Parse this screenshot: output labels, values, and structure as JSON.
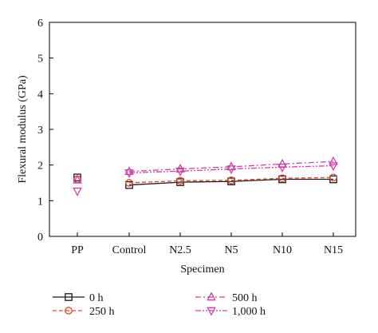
{
  "chart_data": {
    "type": "line",
    "xlabel": "Specimen",
    "ylabel": "Flexural modulus (GPa)",
    "categories": [
      "PP",
      "Control",
      "N2.5",
      "N5",
      "N10",
      "N15"
    ],
    "ylim": [
      0,
      6
    ],
    "yticks": [
      "0",
      "1",
      "2",
      "3",
      "4",
      "5",
      "6"
    ],
    "grid": false,
    "legend_position": "bottom",
    "series": [
      {
        "name": "0 h",
        "marker": "square",
        "color": "#1a1a1a",
        "dash": "solid",
        "values": [
          1.65,
          1.44,
          1.52,
          1.54,
          1.6,
          1.6
        ]
      },
      {
        "name": "250 h",
        "marker": "circle",
        "color": "#e2431e",
        "dash": "dashed",
        "values": [
          1.6,
          1.5,
          1.56,
          1.57,
          1.63,
          1.65
        ]
      },
      {
        "name": "500 h",
        "marker": "triangle-up",
        "color": "#d03ca8",
        "dash": "dashdot",
        "values": [
          1.58,
          1.82,
          1.89,
          1.95,
          2.03,
          2.1
        ]
      },
      {
        "name": "1,000 h",
        "marker": "triangle-down",
        "color": "#d03ca8",
        "dash": "dashdotdot",
        "values": [
          1.27,
          1.78,
          1.83,
          1.89,
          1.94,
          1.98
        ]
      }
    ],
    "line_starts_at": "Control"
  }
}
